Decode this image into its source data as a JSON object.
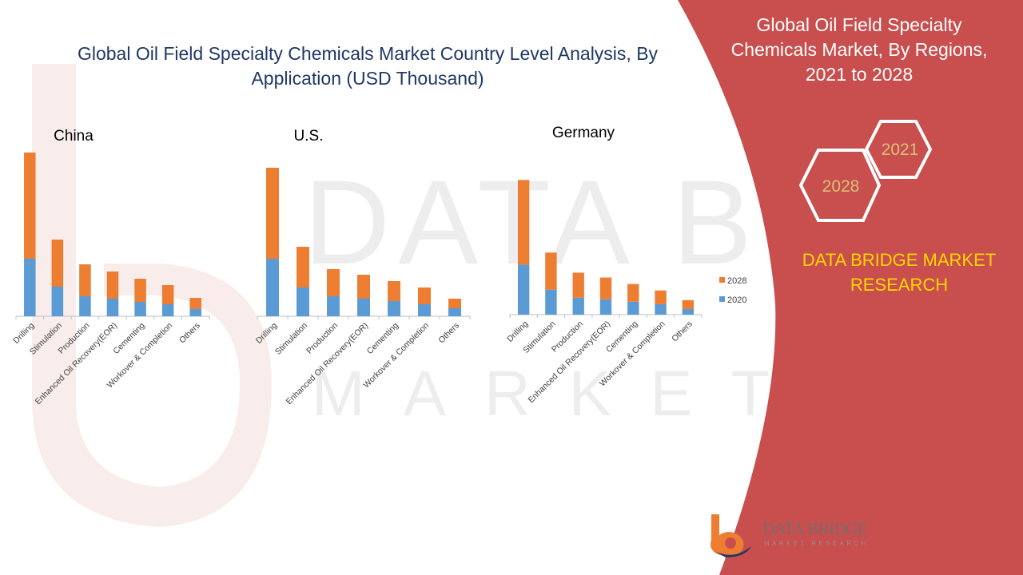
{
  "main_title": "Global Oil Field Specialty Chemicals Market Country Level Analysis, By Application (USD Thousand)",
  "side_panel": {
    "title": "Global Oil Field Specialty Chemicals Market, By Regions, 2021 to 2028",
    "hex_labels": [
      "2021",
      "2028"
    ],
    "brand": "DATA BRIDGE MARKET RESEARCH"
  },
  "logo": {
    "name": "DATA BRIDGE",
    "tagline": "MARKET RESEARCH"
  },
  "colors": {
    "series_2020": "#5b9bd5",
    "series_2028": "#ed7d31",
    "panel": "#c94e4e",
    "title_blue": "#1f3864",
    "brand_yellow": "#ffd700"
  },
  "chart_data": [
    {
      "type": "bar",
      "stacked": true,
      "title": "China",
      "categories": [
        "Drilling",
        "Stimulation",
        "Production",
        "Enhanced Oil Recovery(EOR)",
        "Cementing",
        "Workover & Completion",
        "Others"
      ],
      "series": [
        {
          "name": "2020",
          "values": [
            72,
            37,
            25,
            22,
            18,
            15,
            9
          ]
        },
        {
          "name": "2028",
          "values": [
            133,
            59,
            40,
            34,
            29,
            24,
            14
          ]
        }
      ]
    },
    {
      "type": "bar",
      "stacked": true,
      "title": "U.S.",
      "categories": [
        "Drilling",
        "Stimulation",
        "Production",
        "Enhanced Oil Recovery(EOR)",
        "Cementing",
        "Workover & Completion",
        "Others"
      ],
      "series": [
        {
          "name": "2020",
          "values": [
            72,
            36,
            25,
            22,
            19,
            15,
            10
          ]
        },
        {
          "name": "2028",
          "values": [
            114,
            51,
            34,
            30,
            25,
            21,
            12
          ]
        }
      ]
    },
    {
      "type": "bar",
      "stacked": true,
      "title": "Germany",
      "legend_position": "right",
      "categories": [
        "Drilling",
        "Stimulation",
        "Production",
        "Enhanced Oil Recovery(EOR)",
        "Cementing",
        "Workover & Completion",
        "Others"
      ],
      "series": [
        {
          "name": "2020",
          "values": [
            62,
            31,
            21,
            19,
            16,
            13,
            7
          ]
        },
        {
          "name": "2028",
          "values": [
            105,
            46,
            31,
            27,
            22,
            17,
            11
          ]
        }
      ]
    }
  ]
}
